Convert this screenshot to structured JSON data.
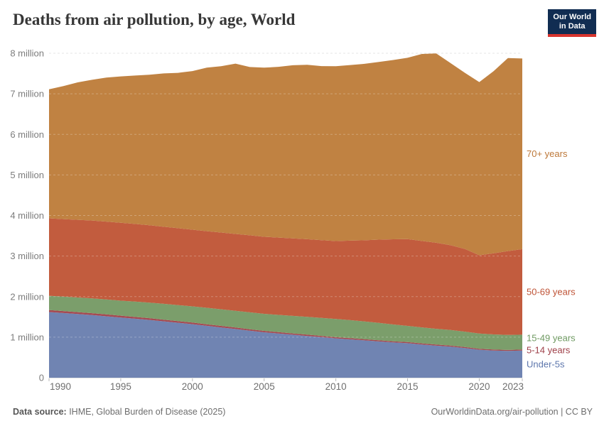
{
  "title": "Deaths from air pollution, by age, World",
  "logo": {
    "line1": "Our World",
    "line2": "in Data"
  },
  "footer": {
    "source_label": "Data source:",
    "source_text": " IHME, Global Burden of Disease (2025)",
    "right_text": "OurWorldinData.org/air-pollution | CC BY"
  },
  "colors": {
    "logo_bg": "#112d52",
    "logo_accent": "#d8352e",
    "gridline": "#dcdcdc",
    "axis_text": "#7d7d7d"
  },
  "chart_data": {
    "type": "area",
    "stacked": true,
    "title": "Deaths from air pollution, by age, World",
    "unit": "million deaths per year",
    "grid": true,
    "legend_position": "right",
    "ylim": [
      0,
      8
    ],
    "x": [
      1990,
      1991,
      1992,
      1993,
      1994,
      1995,
      1996,
      1997,
      1998,
      1999,
      2000,
      2001,
      2002,
      2003,
      2004,
      2005,
      2006,
      2007,
      2008,
      2009,
      2010,
      2011,
      2012,
      2013,
      2014,
      2015,
      2016,
      2017,
      2018,
      2019,
      2020,
      2021,
      2022,
      2023
    ],
    "xticks": [
      1990,
      1995,
      2000,
      2005,
      2010,
      2015,
      2020,
      2023
    ],
    "yticks": [
      {
        "value": 0,
        "label": "0"
      },
      {
        "value": 1,
        "label": "1 million"
      },
      {
        "value": 2,
        "label": "2 million"
      },
      {
        "value": 3,
        "label": "3 million"
      },
      {
        "value": 4,
        "label": "4 million"
      },
      {
        "value": 5,
        "label": "5 million"
      },
      {
        "value": 6,
        "label": "6 million"
      },
      {
        "value": 7,
        "label": "7 million"
      },
      {
        "value": 8,
        "label": "8 million"
      }
    ],
    "series": [
      {
        "name": "Under-5s",
        "color": "#7084b2",
        "label_color": "#5e77ad",
        "values": [
          1.62,
          1.595,
          1.57,
          1.545,
          1.515,
          1.485,
          1.455,
          1.425,
          1.39,
          1.355,
          1.32,
          1.28,
          1.24,
          1.2,
          1.16,
          1.12,
          1.09,
          1.06,
          1.03,
          1.0,
          0.97,
          0.945,
          0.92,
          0.895,
          0.87,
          0.85,
          0.82,
          0.79,
          0.765,
          0.73,
          0.69,
          0.67,
          0.66,
          0.67
        ]
      },
      {
        "name": "5-14 years",
        "color": "#a54a52",
        "label_color": "#9e3e47",
        "values": [
          0.05,
          0.049,
          0.048,
          0.047,
          0.046,
          0.045,
          0.044,
          0.043,
          0.042,
          0.041,
          0.04,
          0.039,
          0.038,
          0.037,
          0.036,
          0.035,
          0.034,
          0.033,
          0.032,
          0.031,
          0.03,
          0.03,
          0.029,
          0.029,
          0.028,
          0.028,
          0.027,
          0.027,
          0.026,
          0.026,
          0.025,
          0.025,
          0.025,
          0.025
        ]
      },
      {
        "name": "15-49 years",
        "color": "#7b9e6b",
        "label_color": "#6f9a62",
        "values": [
          0.35,
          0.355,
          0.36,
          0.365,
          0.368,
          0.37,
          0.377,
          0.383,
          0.39,
          0.395,
          0.4,
          0.405,
          0.41,
          0.413,
          0.417,
          0.42,
          0.426,
          0.432,
          0.438,
          0.444,
          0.45,
          0.445,
          0.44,
          0.43,
          0.415,
          0.4,
          0.395,
          0.39,
          0.385,
          0.38,
          0.375,
          0.372,
          0.368,
          0.365
        ]
      },
      {
        "name": "50-69 years",
        "color": "#c25c3e",
        "label_color": "#bf5336",
        "values": [
          1.91,
          1.912,
          1.915,
          1.918,
          1.92,
          1.92,
          1.915,
          1.91,
          1.9,
          1.895,
          1.89,
          1.89,
          1.892,
          1.895,
          1.898,
          1.9,
          1.905,
          1.91,
          1.915,
          1.918,
          1.92,
          1.96,
          2.0,
          2.05,
          2.1,
          2.14,
          2.13,
          2.12,
          2.09,
          2.04,
          1.93,
          2.0,
          2.07,
          2.11
        ]
      },
      {
        "name": "70+ years",
        "color": "#c08242",
        "label_color": "#bd7839",
        "values": [
          3.18,
          3.28,
          3.39,
          3.47,
          3.55,
          3.61,
          3.66,
          3.71,
          3.78,
          3.83,
          3.91,
          4.03,
          4.1,
          4.2,
          4.15,
          4.17,
          4.21,
          4.27,
          4.3,
          4.29,
          4.31,
          4.33,
          4.35,
          4.38,
          4.42,
          4.47,
          4.61,
          4.67,
          4.49,
          4.34,
          4.27,
          4.49,
          4.76,
          4.7
        ]
      }
    ]
  }
}
